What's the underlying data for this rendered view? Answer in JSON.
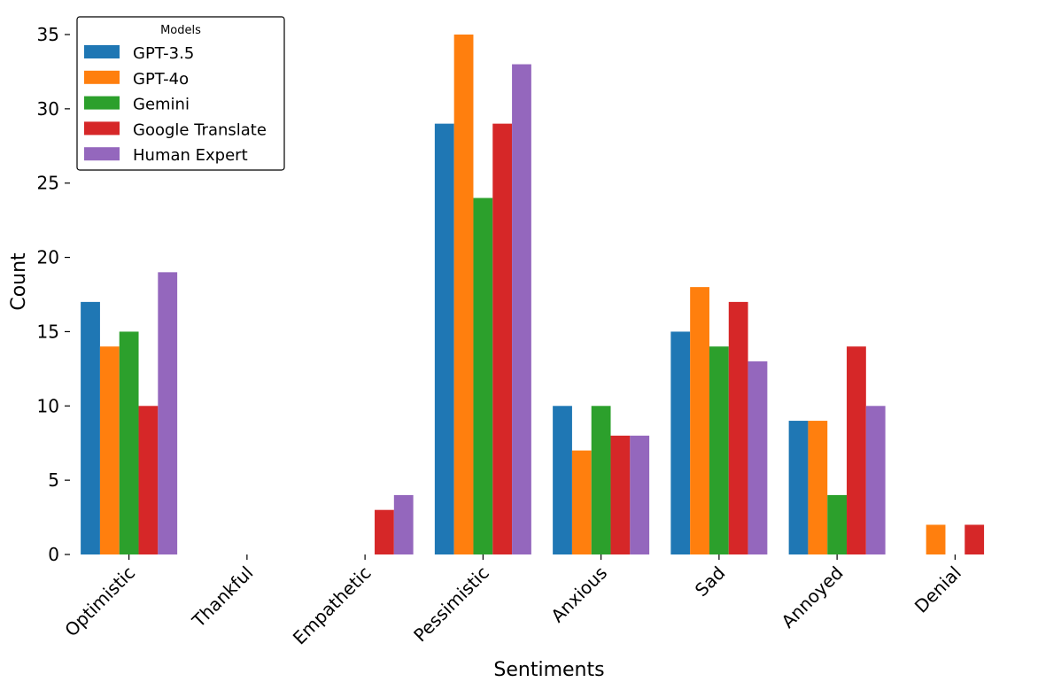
{
  "chart_data": {
    "type": "bar",
    "title": "",
    "xlabel": "Sentiments",
    "ylabel": "Count",
    "ylim": [
      0,
      36
    ],
    "yticks": [
      0,
      5,
      10,
      15,
      20,
      25,
      30,
      35
    ],
    "categories": [
      "Optimistic",
      "Thankful",
      "Empathetic",
      "Pessimistic",
      "Anxious",
      "Sad",
      "Annoyed",
      "Denial"
    ],
    "legend": {
      "title": "Models",
      "placement": "top-left"
    },
    "series": [
      {
        "name": "GPT-3.5",
        "color": "#1f77b4",
        "values": [
          17,
          0,
          0,
          29,
          10,
          15,
          9,
          0
        ]
      },
      {
        "name": "GPT-4o",
        "color": "#ff7f0e",
        "values": [
          14,
          0,
          0,
          35,
          7,
          18,
          9,
          2
        ]
      },
      {
        "name": "Gemini",
        "color": "#2ca02c",
        "values": [
          15,
          0,
          0,
          24,
          10,
          14,
          4,
          0
        ]
      },
      {
        "name": "Google Translate",
        "color": "#d62728",
        "values": [
          10,
          0,
          3,
          29,
          8,
          17,
          14,
          2
        ]
      },
      {
        "name": "Human Expert",
        "color": "#9467bd",
        "values": [
          19,
          0,
          4,
          33,
          8,
          13,
          10,
          0
        ]
      }
    ]
  }
}
